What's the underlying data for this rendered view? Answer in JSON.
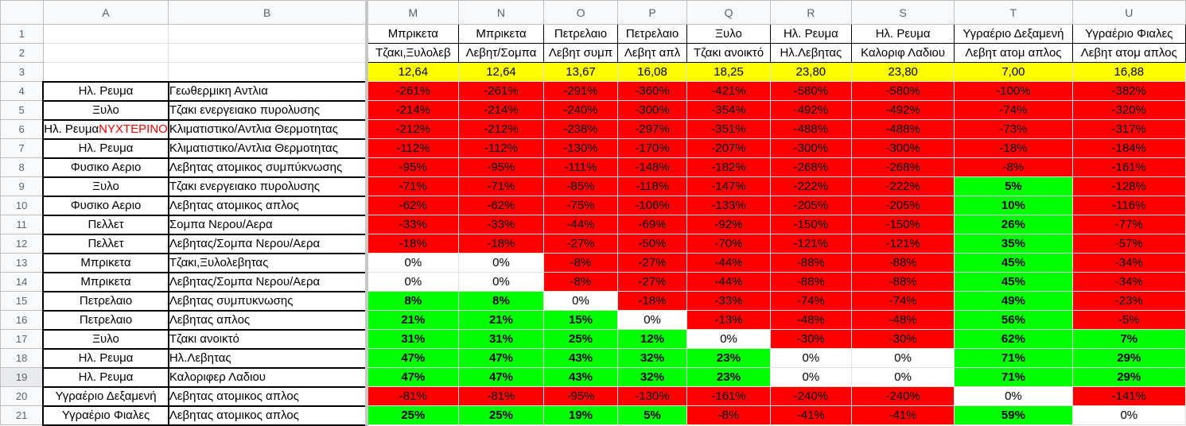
{
  "columns": {
    "row_header": "",
    "a": "A",
    "b": "B",
    "m": "M",
    "n": "N",
    "o": "O",
    "p": "P",
    "q": "Q",
    "r": "R",
    "s": "S",
    "t": "T",
    "u": "U"
  },
  "header_rows": [
    {
      "num": "1",
      "values": [
        "Μπρικετα",
        "Μπρικετα",
        "Πετρελαιο",
        "Πετρελαιο",
        "Ξυλο",
        "Ηλ. Ρευμα",
        "Ηλ. Ρευμα",
        "Υγραέριο Δεξαμενή",
        "Υγραέριο Φιαλες"
      ]
    },
    {
      "num": "2",
      "values": [
        "Τζακι,Ξυλολεβ",
        "Λεβητ/Σομπα",
        "Λεβητ συμπ",
        "Λεβητ απλ",
        "Τζακι ανοικτό",
        "Ηλ.Λεβητας",
        "Καλοριφ Λαδιου",
        "Λεβητ ατομ απλος",
        "Λεβητ ατομ απλος"
      ]
    },
    {
      "num": "3",
      "values": [
        "12,64",
        "12,64",
        "13,67",
        "16,08",
        "18,25",
        "23,80",
        "23,80",
        "7,00",
        "16,88"
      ]
    }
  ],
  "rows": [
    {
      "num": "4",
      "a": "Ηλ. Ρευμα",
      "a_night": "",
      "b": "Γεωθερμικη Αντλια",
      "cells": [
        {
          "v": "-261%",
          "c": "red"
        },
        {
          "v": "-261%",
          "c": "red"
        },
        {
          "v": "-291%",
          "c": "red"
        },
        {
          "v": "-360%",
          "c": "red"
        },
        {
          "v": "-421%",
          "c": "red"
        },
        {
          "v": "-580%",
          "c": "red"
        },
        {
          "v": "-580%",
          "c": "red"
        },
        {
          "v": "-100%",
          "c": "red"
        },
        {
          "v": "-382%",
          "c": "red"
        }
      ]
    },
    {
      "num": "5",
      "a": "Ξυλο",
      "a_night": "",
      "b": "Τζακι ενεργειακο πυρολυσης",
      "cells": [
        {
          "v": "-214%",
          "c": "red"
        },
        {
          "v": "-214%",
          "c": "red"
        },
        {
          "v": "-240%",
          "c": "red"
        },
        {
          "v": "-300%",
          "c": "red"
        },
        {
          "v": "-354%",
          "c": "red"
        },
        {
          "v": "-492%",
          "c": "red"
        },
        {
          "v": "-492%",
          "c": "red"
        },
        {
          "v": "-74%",
          "c": "red"
        },
        {
          "v": "-320%",
          "c": "red"
        }
      ]
    },
    {
      "num": "6",
      "a": "Ηλ. Ρευμα",
      "a_night": "ΝΥΧΤΕΡΙΝΟ",
      "b": "Κλιματιστικο/Αντλια Θερμοτητας",
      "cells": [
        {
          "v": "-212%",
          "c": "red"
        },
        {
          "v": "-212%",
          "c": "red"
        },
        {
          "v": "-238%",
          "c": "red"
        },
        {
          "v": "-297%",
          "c": "red"
        },
        {
          "v": "-351%",
          "c": "red"
        },
        {
          "v": "-488%",
          "c": "red"
        },
        {
          "v": "-488%",
          "c": "red"
        },
        {
          "v": "-73%",
          "c": "red"
        },
        {
          "v": "-317%",
          "c": "red"
        }
      ]
    },
    {
      "num": "7",
      "a": "Ηλ. Ρευμα",
      "a_night": "",
      "b": "Κλιματιστικο/Αντλια Θερμοτητας",
      "cells": [
        {
          "v": "-112%",
          "c": "red"
        },
        {
          "v": "-112%",
          "c": "red"
        },
        {
          "v": "-130%",
          "c": "red"
        },
        {
          "v": "-170%",
          "c": "red"
        },
        {
          "v": "-207%",
          "c": "red"
        },
        {
          "v": "-300%",
          "c": "red"
        },
        {
          "v": "-300%",
          "c": "red"
        },
        {
          "v": "-18%",
          "c": "red"
        },
        {
          "v": "-184%",
          "c": "red"
        }
      ]
    },
    {
      "num": "8",
      "a": "Φυσικο Αεριο",
      "a_night": "",
      "b": "Λεβητας ατομικος συμπύκνωσης",
      "cells": [
        {
          "v": "-95%",
          "c": "red"
        },
        {
          "v": "-95%",
          "c": "red"
        },
        {
          "v": "-111%",
          "c": "red"
        },
        {
          "v": "-148%",
          "c": "red"
        },
        {
          "v": "-182%",
          "c": "red"
        },
        {
          "v": "-268%",
          "c": "red"
        },
        {
          "v": "-268%",
          "c": "red"
        },
        {
          "v": "-8%",
          "c": "red"
        },
        {
          "v": "-161%",
          "c": "red"
        }
      ]
    },
    {
      "num": "9",
      "a": "Ξυλο",
      "a_night": "",
      "b": "Τζακι ενεργειακο πυρολυσης",
      "cells": [
        {
          "v": "-71%",
          "c": "red"
        },
        {
          "v": "-71%",
          "c": "red"
        },
        {
          "v": "-85%",
          "c": "red"
        },
        {
          "v": "-118%",
          "c": "red"
        },
        {
          "v": "-147%",
          "c": "red"
        },
        {
          "v": "-222%",
          "c": "red"
        },
        {
          "v": "-222%",
          "c": "red"
        },
        {
          "v": "5%",
          "c": "green"
        },
        {
          "v": "-128%",
          "c": "red"
        }
      ]
    },
    {
      "num": "10",
      "a": "Φυσικο Αεριο",
      "a_night": "",
      "b": "Λεβητας ατομικος απλος",
      "cells": [
        {
          "v": "-62%",
          "c": "red"
        },
        {
          "v": "-62%",
          "c": "red"
        },
        {
          "v": "-75%",
          "c": "red"
        },
        {
          "v": "-106%",
          "c": "red"
        },
        {
          "v": "-133%",
          "c": "red"
        },
        {
          "v": "-205%",
          "c": "red"
        },
        {
          "v": "-205%",
          "c": "red"
        },
        {
          "v": "10%",
          "c": "green"
        },
        {
          "v": "-116%",
          "c": "red"
        }
      ]
    },
    {
      "num": "11",
      "a": "Πελλετ",
      "a_night": "",
      "b": "Σομπα Νερου/Αερα",
      "cells": [
        {
          "v": "-33%",
          "c": "red"
        },
        {
          "v": "-33%",
          "c": "red"
        },
        {
          "v": "-44%",
          "c": "red"
        },
        {
          "v": "-69%",
          "c": "red"
        },
        {
          "v": "-92%",
          "c": "red"
        },
        {
          "v": "-150%",
          "c": "red"
        },
        {
          "v": "-150%",
          "c": "red"
        },
        {
          "v": "26%",
          "c": "green"
        },
        {
          "v": "-77%",
          "c": "red"
        }
      ]
    },
    {
      "num": "12",
      "a": "Πελλετ",
      "a_night": "",
      "b": "Λεβητας/Σομπα Νερου/Αερα",
      "cells": [
        {
          "v": "-18%",
          "c": "red"
        },
        {
          "v": "-18%",
          "c": "red"
        },
        {
          "v": "-27%",
          "c": "red"
        },
        {
          "v": "-50%",
          "c": "red"
        },
        {
          "v": "-70%",
          "c": "red"
        },
        {
          "v": "-121%",
          "c": "red"
        },
        {
          "v": "-121%",
          "c": "red"
        },
        {
          "v": "35%",
          "c": "green"
        },
        {
          "v": "-57%",
          "c": "red"
        }
      ]
    },
    {
      "num": "13",
      "a": "Μπρικετα",
      "a_night": "",
      "b": "Τζακι,Ξυλολεβητας",
      "cells": [
        {
          "v": "0%",
          "c": "white"
        },
        {
          "v": "0%",
          "c": "white"
        },
        {
          "v": "-8%",
          "c": "red"
        },
        {
          "v": "-27%",
          "c": "red"
        },
        {
          "v": "-44%",
          "c": "red"
        },
        {
          "v": "-88%",
          "c": "red"
        },
        {
          "v": "-88%",
          "c": "red"
        },
        {
          "v": "45%",
          "c": "green"
        },
        {
          "v": "-34%",
          "c": "red"
        }
      ]
    },
    {
      "num": "14",
      "a": "Μπρικετα",
      "a_night": "",
      "b": "Λεβητας/Σομπα Νερου/Αερα",
      "cells": [
        {
          "v": "0%",
          "c": "white"
        },
        {
          "v": "0%",
          "c": "white"
        },
        {
          "v": "-8%",
          "c": "red"
        },
        {
          "v": "-27%",
          "c": "red"
        },
        {
          "v": "-44%",
          "c": "red"
        },
        {
          "v": "-88%",
          "c": "red"
        },
        {
          "v": "-88%",
          "c": "red"
        },
        {
          "v": "45%",
          "c": "green"
        },
        {
          "v": "-34%",
          "c": "red"
        }
      ]
    },
    {
      "num": "15",
      "a": "Πετρελαιο",
      "a_night": "",
      "b": "Λεβητας συμπυκνωσης",
      "cells": [
        {
          "v": "8%",
          "c": "green"
        },
        {
          "v": "8%",
          "c": "green"
        },
        {
          "v": "0%",
          "c": "white"
        },
        {
          "v": "-18%",
          "c": "red"
        },
        {
          "v": "-33%",
          "c": "red"
        },
        {
          "v": "-74%",
          "c": "red"
        },
        {
          "v": "-74%",
          "c": "red"
        },
        {
          "v": "49%",
          "c": "green"
        },
        {
          "v": "-23%",
          "c": "red"
        }
      ]
    },
    {
      "num": "16",
      "a": "Πετρελαιο",
      "a_night": "",
      "b": "Λεβητας απλος",
      "cells": [
        {
          "v": "21%",
          "c": "green"
        },
        {
          "v": "21%",
          "c": "green"
        },
        {
          "v": "15%",
          "c": "green"
        },
        {
          "v": "0%",
          "c": "white"
        },
        {
          "v": "-13%",
          "c": "red"
        },
        {
          "v": "-48%",
          "c": "red"
        },
        {
          "v": "-48%",
          "c": "red"
        },
        {
          "v": "56%",
          "c": "green"
        },
        {
          "v": "-5%",
          "c": "red"
        }
      ]
    },
    {
      "num": "17",
      "a": "Ξυλο",
      "a_night": "",
      "b": "Τζακι ανοικτό",
      "cells": [
        {
          "v": "31%",
          "c": "green"
        },
        {
          "v": "31%",
          "c": "green"
        },
        {
          "v": "25%",
          "c": "green"
        },
        {
          "v": "12%",
          "c": "green"
        },
        {
          "v": "0%",
          "c": "white"
        },
        {
          "v": "-30%",
          "c": "red"
        },
        {
          "v": "-30%",
          "c": "red"
        },
        {
          "v": "62%",
          "c": "green"
        },
        {
          "v": "7%",
          "c": "green"
        }
      ]
    },
    {
      "num": "18",
      "a": "Ηλ. Ρευμα",
      "a_night": "",
      "b": "Ηλ.Λεβητας",
      "cells": [
        {
          "v": "47%",
          "c": "green"
        },
        {
          "v": "47%",
          "c": "green"
        },
        {
          "v": "43%",
          "c": "green"
        },
        {
          "v": "32%",
          "c": "green"
        },
        {
          "v": "23%",
          "c": "green"
        },
        {
          "v": "0%",
          "c": "white"
        },
        {
          "v": "0%",
          "c": "white"
        },
        {
          "v": "71%",
          "c": "green"
        },
        {
          "v": "29%",
          "c": "green"
        }
      ]
    },
    {
      "num": "19",
      "a": "Ηλ. Ρευμα",
      "a_night": "",
      "b": "Καλοριφερ Λαδιου",
      "cells": [
        {
          "v": "47%",
          "c": "green"
        },
        {
          "v": "47%",
          "c": "green"
        },
        {
          "v": "43%",
          "c": "green"
        },
        {
          "v": "32%",
          "c": "green"
        },
        {
          "v": "23%",
          "c": "green"
        },
        {
          "v": "0%",
          "c": "white"
        },
        {
          "v": "0%",
          "c": "white"
        },
        {
          "v": "71%",
          "c": "green"
        },
        {
          "v": "29%",
          "c": "green"
        }
      ]
    },
    {
      "num": "20",
      "a": "Υγραέριο Δεξαμενή",
      "a_night": "",
      "b": "Λεβητας ατομικος απλος",
      "cells": [
        {
          "v": "-81%",
          "c": "red"
        },
        {
          "v": "-81%",
          "c": "red"
        },
        {
          "v": "-95%",
          "c": "red"
        },
        {
          "v": "-130%",
          "c": "red"
        },
        {
          "v": "-161%",
          "c": "red"
        },
        {
          "v": "-240%",
          "c": "red"
        },
        {
          "v": "-240%",
          "c": "red"
        },
        {
          "v": "0%",
          "c": "white"
        },
        {
          "v": "-141%",
          "c": "red"
        }
      ]
    },
    {
      "num": "21",
      "a": "Υγραέριο Φιαλες",
      "a_night": "",
      "b": "Λεβητας ατομικος απλος",
      "cells": [
        {
          "v": "25%",
          "c": "green"
        },
        {
          "v": "25%",
          "c": "green"
        },
        {
          "v": "19%",
          "c": "green"
        },
        {
          "v": "5%",
          "c": "green"
        },
        {
          "v": "-8%",
          "c": "red"
        },
        {
          "v": "-41%",
          "c": "red"
        },
        {
          "v": "-41%",
          "c": "red"
        },
        {
          "v": "59%",
          "c": "green"
        },
        {
          "v": "0%",
          "c": "white"
        }
      ]
    }
  ],
  "colors": {
    "red": "#ff0000",
    "green": "#00ff00",
    "yellow": "#ffff00",
    "white": "#ffffff",
    "header_bg": "#f8f9fa"
  }
}
